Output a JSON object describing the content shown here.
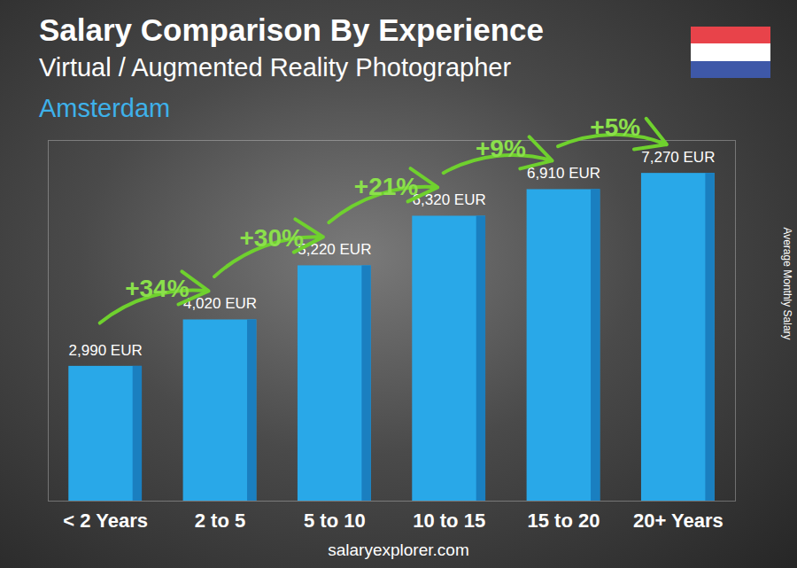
{
  "chart_data": {
    "type": "bar",
    "title": "Salary Comparison By Experience",
    "subtitle": [
      "Virtual / Augmented Reality Photographer",
      "Amsterdam"
    ],
    "ylabel": "Average Monthly Salary",
    "caption": "salaryexplorer.com",
    "categories": [
      "< 2 Years",
      "2 to 5",
      "5 to 10",
      "10 to 15",
      "15 to 20",
      "20+ Years"
    ],
    "values": [
      2990,
      4020,
      5220,
      6320,
      6910,
      7270
    ],
    "value_labels": [
      "2,990 EUR",
      "4,020 EUR",
      "5,220 EUR",
      "6,320 EUR",
      "6,910 EUR",
      "7,270 EUR"
    ],
    "color": "#29a8e8",
    "ylim": [
      0,
      8000
    ],
    "yticks": [],
    "grid": false,
    "data_labels": true,
    "tick_labels": "x",
    "annotations": [
      {
        "text": "+34%",
        "from": "< 2 Years",
        "to": "2 to 5"
      },
      {
        "text": "+30%",
        "from": "2 to 5",
        "to": "5 to 10"
      },
      {
        "text": "+21%",
        "from": "5 to 10",
        "to": "10 to 15"
      },
      {
        "text": "+9%",
        "from": "10 to 15",
        "to": "15 to 20"
      },
      {
        "text": "+5%",
        "from": "15 to 20",
        "to": "20+ Years"
      }
    ]
  }
}
